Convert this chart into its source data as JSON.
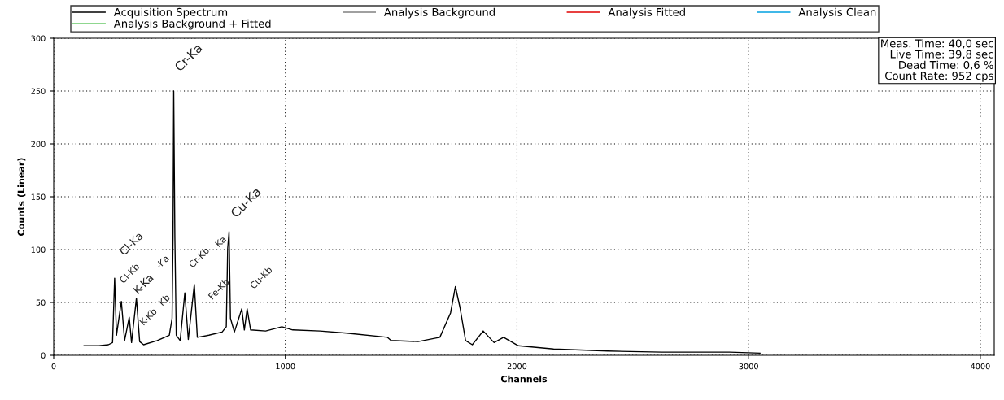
{
  "chart_data": {
    "type": "line",
    "xlabel": "Channels",
    "ylabel": "Counts (Linear)",
    "xlim": [
      0,
      4060
    ],
    "ylim": [
      0,
      300
    ],
    "xticks": [
      0,
      1000,
      2000,
      3000,
      4000
    ],
    "yticks": [
      0,
      50,
      100,
      150,
      200,
      250,
      300
    ],
    "grid": true,
    "legend": "top",
    "marker": "none",
    "line_style": "solid",
    "series": [
      {
        "name": "Acquisition Spectrum",
        "color": "#000000",
        "x": [
          131,
          195,
          236,
          254,
          263,
          271,
          292,
          306,
          326,
          336,
          357,
          371,
          388,
          447,
          499,
          511,
          515,
          518,
          523,
          529,
          546,
          566,
          581,
          607,
          620,
          670,
          727,
          745,
          751,
          757,
          763,
          780,
          812,
          823,
          835,
          850,
          915,
          985,
          1032,
          1149,
          1265,
          1441,
          1456,
          1573,
          1667,
          1713,
          1734,
          1754,
          1778,
          1807,
          1854,
          1901,
          1942,
          2006,
          2158,
          2392,
          2626,
          2918,
          3049
        ],
        "values": [
          9,
          9,
          10,
          12,
          73,
          19,
          51,
          14,
          36,
          12,
          54,
          13,
          10,
          14,
          19,
          35,
          112,
          250,
          112,
          19,
          14,
          59,
          15,
          67,
          17,
          19,
          22,
          27,
          101,
          117,
          35,
          22,
          44,
          24,
          44,
          24,
          23,
          27,
          24,
          23,
          21,
          17,
          14,
          13,
          17,
          40,
          65,
          45,
          14,
          10,
          23,
          12,
          17,
          9,
          6,
          4,
          3,
          3,
          2
        ]
      },
      {
        "name": "Analysis Background",
        "color": "#808080"
      },
      {
        "name": "Analysis Fitted",
        "color": "#e00000"
      },
      {
        "name": "Analysis Clean",
        "color": "#00a0e0"
      },
      {
        "name": "Analysis Background + Fitted",
        "color": "#20b020"
      }
    ],
    "annotations": [
      "Cr-Ka",
      "Cl-Ka",
      "Cl-Kb",
      "-Ka",
      "K-Ka",
      "K-Kb",
      "Kb",
      "Cr-Kb",
      "Ka",
      "Cu-Ka",
      "Fe-Kb",
      "Cu-Kb",
      "Meas. Time: 40,0 sec\nLive Time: 39,8 sec\nDead Time: 0,6 %\nCount Rate: 952 cps"
    ]
  }
}
